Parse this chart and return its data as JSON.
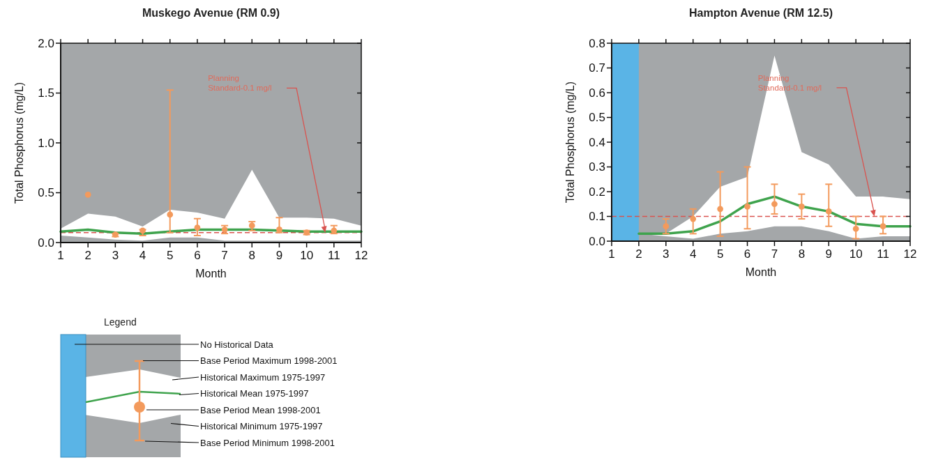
{
  "chart_data": [
    {
      "type": "line",
      "title": "Muskego Avenue (RM 0.9)",
      "xlabel": "Month",
      "ylabel": "Total Phosphorus (mg/L)",
      "xlim": [
        1,
        12
      ],
      "xticks": [
        1,
        2,
        3,
        4,
        5,
        6,
        7,
        8,
        9,
        10,
        11,
        12
      ],
      "ylim": [
        0,
        2
      ],
      "yticks": [
        {
          "value": 0,
          "label": "0.0"
        },
        {
          "value": 0.5,
          "label": "0.5"
        },
        {
          "value": 1,
          "label": "1.0"
        },
        {
          "value": 1.5,
          "label": "1.5"
        },
        {
          "value": 2,
          "label": "2.0"
        }
      ],
      "series": [
        {
          "type": "line",
          "color": "#3fa34d",
          "x": [
            1,
            2,
            3,
            4,
            5,
            6,
            7,
            8,
            9,
            10,
            11,
            12
          ],
          "values": [
            0.11,
            0.13,
            0.1,
            0.09,
            0.11,
            0.13,
            0.13,
            0.13,
            0.12,
            0.11,
            0.11,
            0.11
          ],
          "lower": [
            0.07,
            0.05,
            0.03,
            0.02,
            0.05,
            0.05,
            0.02,
            0.02,
            0.02,
            0.02,
            0.02,
            0.02
          ],
          "upper": [
            0.14,
            0.29,
            0.26,
            0.16,
            0.33,
            0.3,
            0.24,
            0.73,
            0.25,
            0.25,
            0.24,
            0.17
          ]
        },
        {
          "type": "scatter",
          "marker": "circle",
          "color": "#f39a5c",
          "x": [
            2,
            3,
            4,
            5,
            6,
            7,
            8,
            9,
            10,
            11
          ],
          "values": [
            0.48,
            0.08,
            0.12,
            0.28,
            0.15,
            0.13,
            0.17,
            0.13,
            0.1,
            0.12
          ],
          "errors": [
            null,
            [
              0.06,
              0.09
            ],
            [
              0.07,
              0.13
            ],
            [
              0.1,
              1.53
            ],
            [
              0.07,
              0.24
            ],
            [
              0.09,
              0.17
            ],
            [
              0.12,
              0.21
            ],
            [
              0.1,
              0.25
            ],
            [
              0.08,
              0.12
            ],
            [
              0.09,
              0.17
            ]
          ]
        }
      ],
      "ref_lines": [
        {
          "axis": "y",
          "value": 0.1,
          "color": "#d9534f",
          "line_style": "dashed",
          "label": "Planning Standard-0.1 mg/l"
        }
      ]
    },
    {
      "type": "line",
      "title": "Hampton Avenue (RM 12.5)",
      "xlabel": "Month",
      "ylabel": "Total Phosphorus (mg/L)",
      "xlim": [
        1,
        12
      ],
      "xticks": [
        1,
        2,
        3,
        4,
        5,
        6,
        7,
        8,
        9,
        10,
        11,
        12
      ],
      "ylim": [
        0,
        0.8
      ],
      "yticks": [
        {
          "value": 0,
          "label": "0.0"
        },
        {
          "value": 0.1,
          "label": "0.1"
        },
        {
          "value": 0.2,
          "label": "0.2"
        },
        {
          "value": 0.3,
          "label": "0.3"
        },
        {
          "value": 0.4,
          "label": "0.4"
        },
        {
          "value": 0.5,
          "label": "0.5"
        },
        {
          "value": 0.6,
          "label": "0.6"
        },
        {
          "value": 0.7,
          "label": "0.7"
        },
        {
          "value": 0.8,
          "label": "0.8"
        }
      ],
      "series": [
        {
          "type": "line",
          "color": "#3fa34d",
          "x": [
            2,
            3,
            4,
            5,
            6,
            7,
            8,
            9,
            10,
            11,
            12
          ],
          "values": [
            0.03,
            0.03,
            0.04,
            0.08,
            0.15,
            0.18,
            0.14,
            0.12,
            0.07,
            0.06,
            0.06
          ],
          "lower": [
            0.03,
            0.02,
            0.01,
            0.03,
            0.04,
            0.06,
            0.06,
            0.04,
            0.01,
            0.02,
            0.02
          ],
          "upper": [
            0.03,
            0.03,
            0.1,
            0.22,
            0.26,
            0.75,
            0.36,
            0.31,
            0.18,
            0.18,
            0.17
          ]
        },
        {
          "type": "scatter",
          "marker": "circle",
          "color": "#f39a5c",
          "x": [
            3,
            4,
            5,
            6,
            7,
            8,
            9,
            10,
            11
          ],
          "values": [
            0.06,
            0.09,
            0.13,
            0.14,
            0.15,
            0.14,
            0.12,
            0.05,
            0.06
          ],
          "errors": [
            [
              0.03,
              0.09
            ],
            [
              0.03,
              0.13
            ],
            [
              0.02,
              0.28
            ],
            [
              0.05,
              0.3
            ],
            [
              0.11,
              0.23
            ],
            [
              0.09,
              0.19
            ],
            [
              0.06,
              0.23
            ],
            [
              0.01,
              0.1
            ],
            [
              0.03,
              0.1
            ]
          ]
        }
      ],
      "bands": [
        {
          "axis": "x",
          "from": 1,
          "to": 2,
          "color": "#5ab4e6"
        }
      ],
      "ref_lines": [
        {
          "axis": "y",
          "value": 0.1,
          "color": "#d9534f",
          "line_style": "dashed",
          "label": "Planning Standard-0.1 mg/l"
        }
      ]
    },
    {
      "type": "other",
      "title": "Legend",
      "annotations": [
        "No Historical Data",
        "Base Period Maximum 1998-2001",
        "Historical Maximum 1975-1997",
        "Historical Mean 1975-1997",
        "Base Period Mean 1998-2001",
        "Historical Minimum 1975-1997",
        "Base Period Minimum 1998-2001"
      ]
    }
  ]
}
